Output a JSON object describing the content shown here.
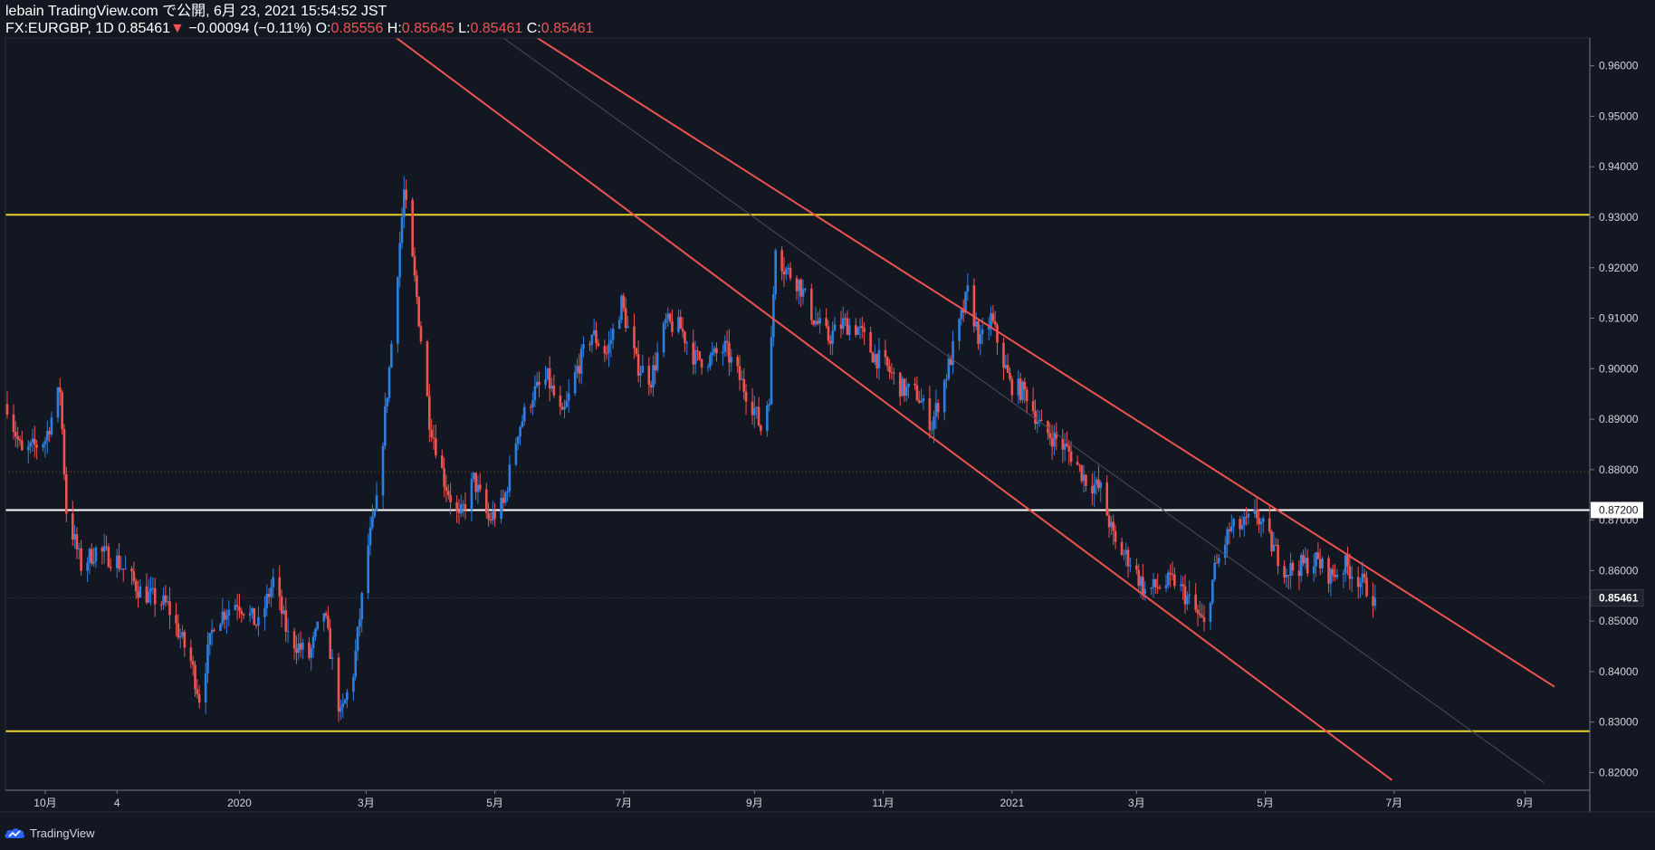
{
  "header": {
    "publish_line": "lebain TradingView.com で公開, 6月 23, 2021 15:54:52 JST",
    "symbol": "FX:EURGBP, 1D",
    "last": "0.85461",
    "change_arrow": "▼",
    "change": "−0.00094 (−0.11%)",
    "o_label": "O:",
    "o_value": "0.85556",
    "h_label": "H:",
    "h_value": "0.85645",
    "l_label": "L:",
    "l_value": "0.85461",
    "c_label": "C:",
    "c_value": "0.85461"
  },
  "footer": {
    "brand": "TradingView",
    "icon": "tradingview-cloud-logo-icon"
  },
  "colors": {
    "background": "#131722",
    "up": "#2d7fe0",
    "down": "#ef5350",
    "support_resistance": "#e8d12f",
    "channel": "#ef5350",
    "level": "#ffffff",
    "axis_text": "#d1d4dc"
  },
  "chart_data": {
    "type": "candlestick",
    "symbol": "FX:EURGBP",
    "interval": "1D",
    "ylim": [
      0.8165,
      0.9655
    ],
    "y_ticks": [
      "0.82000",
      "0.83000",
      "0.84000",
      "0.85000",
      "0.86000",
      "0.87000",
      "0.88000",
      "0.89000",
      "0.90000",
      "0.91000",
      "0.92000",
      "0.93000",
      "0.94000",
      "0.95000",
      "0.96000"
    ],
    "x_ticks": [
      {
        "label": "10月",
        "date": "2019-10-01"
      },
      {
        "label": "4",
        "date": "2019-11-04"
      },
      {
        "label": "2020",
        "date": "2020-01-01"
      },
      {
        "label": "3月",
        "date": "2020-03-01"
      },
      {
        "label": "5月",
        "date": "2020-05-01"
      },
      {
        "label": "7月",
        "date": "2020-07-01"
      },
      {
        "label": "9月",
        "date": "2020-09-01"
      },
      {
        "label": "11月",
        "date": "2020-11-01"
      },
      {
        "label": "2021",
        "date": "2021-01-01"
      },
      {
        "label": "3月",
        "date": "2021-03-01"
      },
      {
        "label": "5月",
        "date": "2021-05-01"
      },
      {
        "label": "7月",
        "date": "2021-07-01"
      },
      {
        "label": "9月",
        "date": "2021-09-01"
      }
    ],
    "close_path": [
      [
        "2019-09-13",
        0.893
      ],
      [
        "2019-09-20",
        0.883
      ],
      [
        "2019-10-01",
        0.886
      ],
      [
        "2019-10-08",
        0.896
      ],
      [
        "2019-10-11",
        0.872
      ],
      [
        "2019-10-18",
        0.861
      ],
      [
        "2019-10-25",
        0.864
      ],
      [
        "2019-11-04",
        0.862
      ],
      [
        "2019-11-15",
        0.856
      ],
      [
        "2019-11-28",
        0.853
      ],
      [
        "2019-12-09",
        0.842
      ],
      [
        "2019-12-13",
        0.835
      ],
      [
        "2019-12-20",
        0.85
      ],
      [
        "2019-12-31",
        0.854
      ],
      [
        "2020-01-10",
        0.849
      ],
      [
        "2020-01-17",
        0.858
      ],
      [
        "2020-01-24",
        0.847
      ],
      [
        "2020-02-03",
        0.843
      ],
      [
        "2020-02-10",
        0.852
      ],
      [
        "2020-02-18",
        0.831
      ],
      [
        "2020-02-24",
        0.84
      ],
      [
        "2020-03-02",
        0.865
      ],
      [
        "2020-03-06",
        0.873
      ],
      [
        "2020-03-12",
        0.9
      ],
      [
        "2020-03-19",
        0.935
      ],
      [
        "2020-03-25",
        0.914
      ],
      [
        "2020-03-31",
        0.89
      ],
      [
        "2020-04-07",
        0.878
      ],
      [
        "2020-04-14",
        0.87
      ],
      [
        "2020-04-21",
        0.878
      ],
      [
        "2020-04-28",
        0.87
      ],
      [
        "2020-05-05",
        0.873
      ],
      [
        "2020-05-12",
        0.888
      ],
      [
        "2020-05-19",
        0.895
      ],
      [
        "2020-05-26",
        0.898
      ],
      [
        "2020-06-02",
        0.89
      ],
      [
        "2020-06-09",
        0.9
      ],
      [
        "2020-06-16",
        0.907
      ],
      [
        "2020-06-23",
        0.903
      ],
      [
        "2020-06-30",
        0.913
      ],
      [
        "2020-07-07",
        0.901
      ],
      [
        "2020-07-14",
        0.898
      ],
      [
        "2020-07-21",
        0.909
      ],
      [
        "2020-07-28",
        0.908
      ],
      [
        "2020-08-04",
        0.902
      ],
      [
        "2020-08-11",
        0.902
      ],
      [
        "2020-08-18",
        0.904
      ],
      [
        "2020-08-25",
        0.898
      ],
      [
        "2020-09-01",
        0.892
      ],
      [
        "2020-09-04",
        0.888
      ],
      [
        "2020-09-08",
        0.895
      ],
      [
        "2020-09-11",
        0.925
      ],
      [
        "2020-09-15",
        0.92
      ],
      [
        "2020-09-22",
        0.917
      ],
      [
        "2020-09-29",
        0.91
      ],
      [
        "2020-10-06",
        0.906
      ],
      [
        "2020-10-13",
        0.909
      ],
      [
        "2020-10-20",
        0.908
      ],
      [
        "2020-10-27",
        0.903
      ],
      [
        "2020-11-03",
        0.9
      ],
      [
        "2020-11-10",
        0.896
      ],
      [
        "2020-11-17",
        0.895
      ],
      [
        "2020-11-24",
        0.889
      ],
      [
        "2020-12-01",
        0.899
      ],
      [
        "2020-12-08",
        0.91
      ],
      [
        "2020-12-11",
        0.915
      ],
      [
        "2020-12-17",
        0.905
      ],
      [
        "2020-12-22",
        0.91
      ],
      [
        "2020-12-31",
        0.897
      ],
      [
        "2021-01-08",
        0.895
      ],
      [
        "2021-01-15",
        0.888
      ],
      [
        "2021-01-22",
        0.886
      ],
      [
        "2021-01-29",
        0.883
      ],
      [
        "2021-02-05",
        0.878
      ],
      [
        "2021-02-12",
        0.876
      ],
      [
        "2021-02-19",
        0.865
      ],
      [
        "2021-02-26",
        0.862
      ],
      [
        "2021-03-05",
        0.856
      ],
      [
        "2021-03-12",
        0.857
      ],
      [
        "2021-03-19",
        0.858
      ],
      [
        "2021-03-26",
        0.854
      ],
      [
        "2021-04-02",
        0.849
      ],
      [
        "2021-04-07",
        0.86
      ],
      [
        "2021-04-14",
        0.868
      ],
      [
        "2021-04-21",
        0.869
      ],
      [
        "2021-04-27",
        0.871
      ],
      [
        "2021-05-04",
        0.865
      ],
      [
        "2021-05-11",
        0.86
      ],
      [
        "2021-05-18",
        0.861
      ],
      [
        "2021-05-25",
        0.862
      ],
      [
        "2021-06-01",
        0.859
      ],
      [
        "2021-06-08",
        0.861
      ],
      [
        "2021-06-15",
        0.858
      ],
      [
        "2021-06-22",
        0.8546
      ]
    ],
    "current_price": 0.85461,
    "horizontal_lines": [
      {
        "name": "resistance",
        "price": 0.9305,
        "color": "#e8d12f"
      },
      {
        "name": "support",
        "price": 0.8282,
        "color": "#e8d12f"
      },
      {
        "name": "level",
        "price": 0.872,
        "color": "#ffffff",
        "label": "0.87200"
      }
    ],
    "dotted_lines": [
      {
        "price": 0.8796
      }
    ],
    "trend_lines": [
      {
        "name": "channel-upper",
        "p1": [
          "2020-05-08",
          0.969
        ],
        "p2": [
          "2021-09-15",
          0.837
        ],
        "color": "#ef5350"
      },
      {
        "name": "channel-lower",
        "p1": [
          "2020-03-01",
          0.97
        ],
        "p2": [
          "2021-06-30",
          0.8185
        ],
        "color": "#ef5350"
      },
      {
        "name": "channel-mid",
        "p1": [
          "2020-04-20",
          0.97
        ],
        "p2": [
          "2021-09-10",
          0.818
        ],
        "color": "#4a4e5a"
      }
    ]
  }
}
